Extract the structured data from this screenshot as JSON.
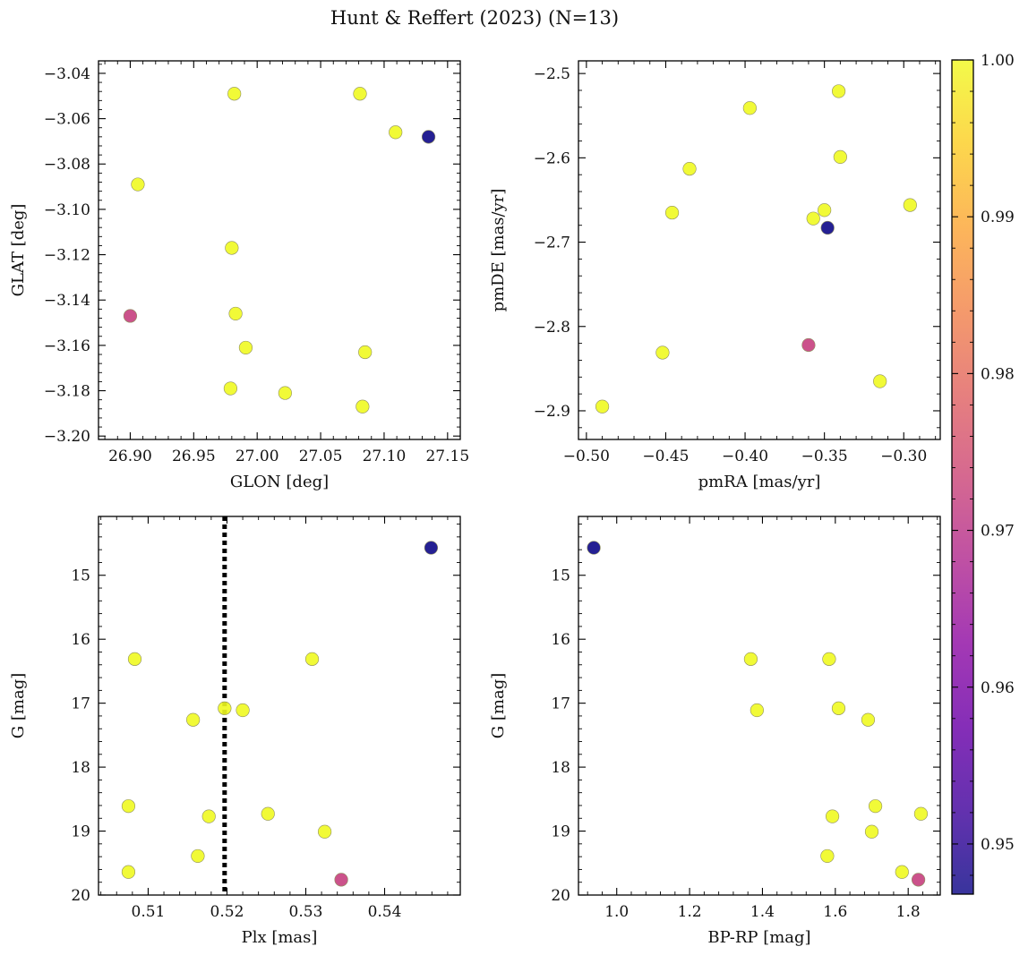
{
  "figure": {
    "title": "Hunt & Reffert (2023) (N=13)"
  },
  "chart_data": [
    {
      "id": "sky",
      "type": "scatter",
      "xlabel": "GLON [deg]",
      "ylabel": "GLAT [deg]",
      "xlim": [
        26.875,
        27.16
      ],
      "ylim": [
        -3.2015,
        -3.0345
      ],
      "xticks": [
        26.9,
        26.95,
        27.0,
        27.05,
        27.1,
        27.15
      ],
      "xtick_labels": [
        "26.90",
        "26.95",
        "27.00",
        "27.05",
        "27.10",
        "27.15"
      ],
      "yticks": [
        -3.2,
        -3.18,
        -3.16,
        -3.14,
        -3.12,
        -3.1,
        -3.08,
        -3.06,
        -3.04
      ],
      "ytick_labels": [
        "−3.20",
        "−3.18",
        "−3.16",
        "−3.14",
        "−3.12",
        "−3.10",
        "−3.08",
        "−3.06",
        "−3.04"
      ],
      "y_inverted": false,
      "points": [
        {
          "x": 26.982,
          "y": -3.049,
          "c": 1.0
        },
        {
          "x": 27.081,
          "y": -3.049,
          "c": 1.0
        },
        {
          "x": 27.109,
          "y": -3.066,
          "c": 1.0
        },
        {
          "x": 27.135,
          "y": -3.068,
          "c": 0.9468
        },
        {
          "x": 26.906,
          "y": -3.089,
          "c": 1.0
        },
        {
          "x": 26.98,
          "y": -3.117,
          "c": 1.0
        },
        {
          "x": 26.9,
          "y": -3.147,
          "c": 0.972
        },
        {
          "x": 26.983,
          "y": -3.146,
          "c": 1.0
        },
        {
          "x": 26.991,
          "y": -3.161,
          "c": 1.0
        },
        {
          "x": 27.085,
          "y": -3.163,
          "c": 1.0
        },
        {
          "x": 26.979,
          "y": -3.179,
          "c": 1.0
        },
        {
          "x": 27.022,
          "y": -3.181,
          "c": 1.0
        },
        {
          "x": 27.083,
          "y": -3.187,
          "c": 1.0
        }
      ]
    },
    {
      "id": "pm",
      "type": "scatter",
      "xlabel": "pmRA [mas/yr]",
      "ylabel": "pmDE [mas/yr]",
      "xlim": [
        -0.505,
        -0.277
      ],
      "ylim": [
        -2.934,
        -2.485
      ],
      "xticks": [
        -0.5,
        -0.45,
        -0.4,
        -0.35,
        -0.3
      ],
      "xtick_labels": [
        "−0.50",
        "−0.45",
        "−0.40",
        "−0.35",
        "−0.30"
      ],
      "yticks": [
        -2.9,
        -2.8,
        -2.7,
        -2.6,
        -2.5
      ],
      "ytick_labels": [
        "−2.9",
        "−2.8",
        "−2.7",
        "−2.6",
        "−2.5"
      ],
      "y_inverted": false,
      "points": [
        {
          "x": -0.341,
          "y": -2.521,
          "c": 1.0
        },
        {
          "x": -0.397,
          "y": -2.541,
          "c": 1.0
        },
        {
          "x": -0.34,
          "y": -2.599,
          "c": 1.0
        },
        {
          "x": -0.435,
          "y": -2.613,
          "c": 1.0
        },
        {
          "x": -0.296,
          "y": -2.656,
          "c": 1.0
        },
        {
          "x": -0.446,
          "y": -2.665,
          "c": 1.0
        },
        {
          "x": -0.35,
          "y": -2.662,
          "c": 1.0
        },
        {
          "x": -0.357,
          "y": -2.672,
          "c": 1.0
        },
        {
          "x": -0.348,
          "y": -2.683,
          "c": 0.9468
        },
        {
          "x": -0.36,
          "y": -2.822,
          "c": 0.972
        },
        {
          "x": -0.452,
          "y": -2.831,
          "c": 1.0
        },
        {
          "x": -0.315,
          "y": -2.865,
          "c": 1.0
        },
        {
          "x": -0.49,
          "y": -2.895,
          "c": 1.0
        }
      ]
    },
    {
      "id": "plx",
      "type": "scatter",
      "xlabel": "Plx [mas]",
      "ylabel": "G [mag]",
      "xlim": [
        0.5037,
        0.5496
      ],
      "ylim": [
        20.0,
        14.08
      ],
      "xticks": [
        0.51,
        0.52,
        0.53,
        0.54
      ],
      "xtick_labels": [
        "0.51",
        "0.52",
        "0.53",
        "0.54"
      ],
      "yticks": [
        15,
        16,
        17,
        18,
        19,
        20
      ],
      "ytick_labels": [
        "15",
        "16",
        "17",
        "18",
        "19",
        "20"
      ],
      "y_inverted": true,
      "vline": {
        "x": 0.5197,
        "style": "dotted",
        "color": "#000000"
      },
      "points": [
        {
          "x": 0.5459,
          "y": 14.57,
          "c": 0.9468
        },
        {
          "x": 0.5083,
          "y": 16.31,
          "c": 1.0
        },
        {
          "x": 0.5308,
          "y": 16.31,
          "c": 1.0
        },
        {
          "x": 0.5157,
          "y": 17.26,
          "c": 1.0
        },
        {
          "x": 0.5197,
          "y": 17.08,
          "c": 1.0
        },
        {
          "x": 0.522,
          "y": 17.11,
          "c": 1.0
        },
        {
          "x": 0.5075,
          "y": 18.61,
          "c": 1.0
        },
        {
          "x": 0.5177,
          "y": 18.77,
          "c": 1.0
        },
        {
          "x": 0.5252,
          "y": 18.73,
          "c": 1.0
        },
        {
          "x": 0.5324,
          "y": 19.01,
          "c": 1.0
        },
        {
          "x": 0.5163,
          "y": 19.39,
          "c": 1.0
        },
        {
          "x": 0.5075,
          "y": 19.64,
          "c": 1.0
        },
        {
          "x": 0.5345,
          "y": 19.76,
          "c": 0.972
        }
      ]
    },
    {
      "id": "cmd",
      "type": "scatter",
      "xlabel": "BP-RP [mag]",
      "ylabel": "G [mag]",
      "xlim": [
        0.895,
        1.888
      ],
      "ylim": [
        20.0,
        14.08
      ],
      "xticks": [
        1.0,
        1.2,
        1.4,
        1.6,
        1.8
      ],
      "xtick_labels": [
        "1.0",
        "1.2",
        "1.4",
        "1.6",
        "1.8"
      ],
      "yticks": [
        15,
        16,
        17,
        18,
        19,
        20
      ],
      "ytick_labels": [
        "15",
        "16",
        "17",
        "18",
        "19",
        "20"
      ],
      "y_inverted": true,
      "points": [
        {
          "x": 0.937,
          "y": 14.57,
          "c": 0.9468
        },
        {
          "x": 1.368,
          "y": 16.31,
          "c": 1.0
        },
        {
          "x": 1.583,
          "y": 16.31,
          "c": 1.0
        },
        {
          "x": 1.385,
          "y": 17.11,
          "c": 1.0
        },
        {
          "x": 1.609,
          "y": 17.08,
          "c": 1.0
        },
        {
          "x": 1.69,
          "y": 17.26,
          "c": 1.0
        },
        {
          "x": 1.71,
          "y": 18.61,
          "c": 1.0
        },
        {
          "x": 1.835,
          "y": 18.73,
          "c": 1.0
        },
        {
          "x": 1.592,
          "y": 18.77,
          "c": 1.0
        },
        {
          "x": 1.7,
          "y": 19.01,
          "c": 1.0
        },
        {
          "x": 1.578,
          "y": 19.39,
          "c": 1.0
        },
        {
          "x": 1.783,
          "y": 19.64,
          "c": 1.0
        },
        {
          "x": 1.828,
          "y": 19.76,
          "c": 0.972
        }
      ]
    }
  ],
  "colorbar": {
    "cmap": "plasma",
    "vmin": 0.9468,
    "vmax": 1.0,
    "ticks": [
      0.95,
      0.96,
      0.97,
      0.98,
      0.99,
      1.0
    ],
    "tick_labels": [
      "0.95",
      "0.96",
      "0.97",
      "0.98",
      "0.99",
      "1.00"
    ]
  }
}
